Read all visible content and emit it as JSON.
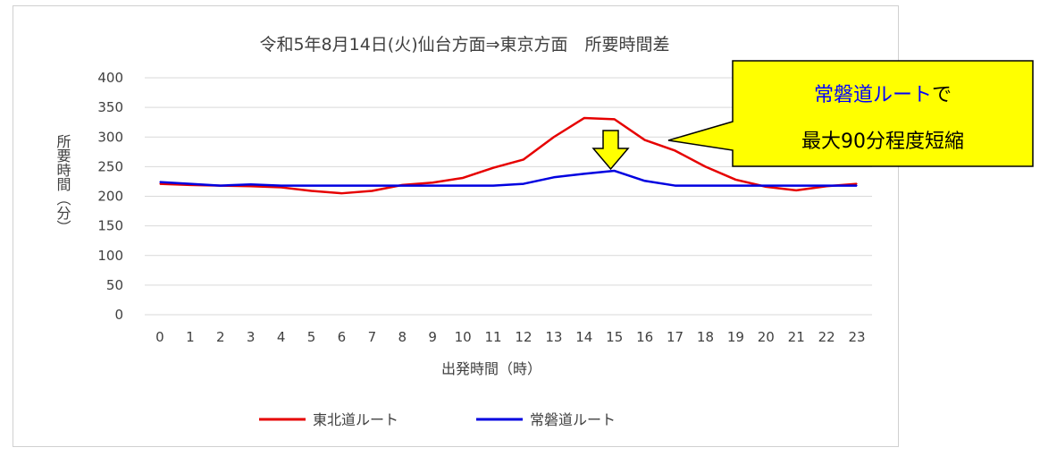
{
  "chart_data": {
    "type": "line",
    "title": "令和5年8月14日(火)仙台方面⇒東京方面　所要時間差",
    "xlabel": "出発時間（時）",
    "ylabel": "所要時間（分）",
    "ylim": [
      0,
      400
    ],
    "yticks": [
      0,
      50,
      100,
      150,
      200,
      250,
      300,
      350,
      400
    ],
    "categories": [
      "0",
      "1",
      "2",
      "3",
      "4",
      "5",
      "6",
      "7",
      "8",
      "9",
      "10",
      "11",
      "12",
      "13",
      "14",
      "15",
      "16",
      "17",
      "18",
      "19",
      "20",
      "21",
      "22",
      "23"
    ],
    "series": [
      {
        "name": "東北道ルート",
        "color": "#e60000",
        "values": [
          221,
          219,
          218,
          217,
          215,
          209,
          205,
          209,
          219,
          223,
          231,
          248,
          262,
          300,
          332,
          330,
          295,
          277,
          250,
          228,
          216,
          210,
          217,
          221
        ]
      },
      {
        "name": "常磐道ルート",
        "color": "#0000e0",
        "values": [
          224,
          221,
          218,
          220,
          218,
          218,
          218,
          218,
          218,
          218,
          218,
          218,
          221,
          232,
          238,
          243,
          226,
          218,
          218,
          218,
          218,
          218,
          218,
          218
        ]
      }
    ],
    "grid": true,
    "legend": "bottom",
    "annotation": {
      "line1_highlight": "常磐道ルート",
      "line1_rest": "で",
      "line2": "最大90分程度短縮",
      "arrow_at_x": "15",
      "box_color": "#ffff00",
      "highlight_color": "#0000ff",
      "arrow_color": "#ffff00"
    }
  }
}
